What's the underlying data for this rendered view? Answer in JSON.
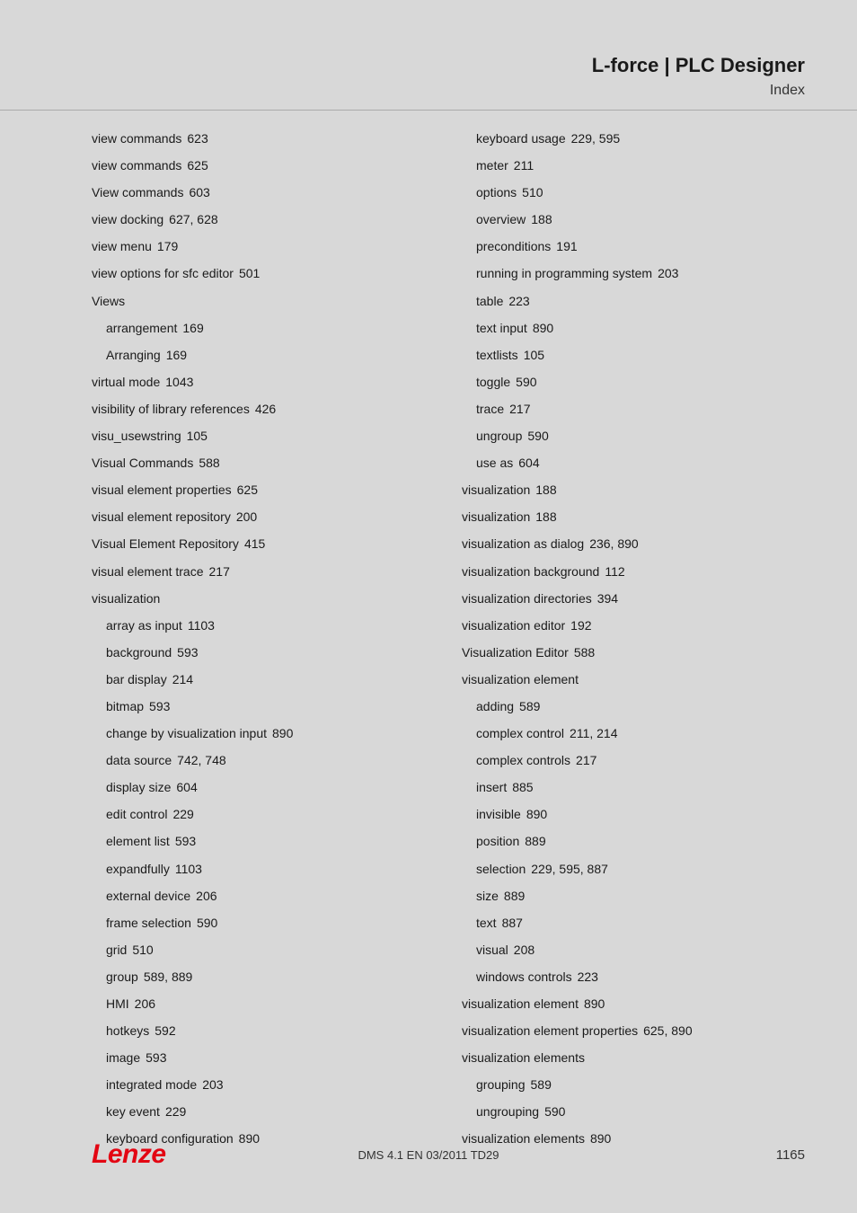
{
  "header": {
    "title": "L-force | PLC Designer",
    "subtitle": "Index"
  },
  "footer": {
    "logo": "Lenze",
    "doc_id": "DMS 4.1 EN 03/2011 TD29",
    "page_number": "1165"
  },
  "index": {
    "left": [
      {
        "level": 1,
        "term": "view commands",
        "pages": "623"
      },
      {
        "level": 1,
        "term": "view commands",
        "pages": "625"
      },
      {
        "level": 1,
        "term": "View commands",
        "pages": "603"
      },
      {
        "level": 1,
        "term": "view docking",
        "pages": "627, 628"
      },
      {
        "level": 1,
        "term": "view menu",
        "pages": "179"
      },
      {
        "level": 1,
        "term": "view options for sfc editor",
        "pages": "501"
      },
      {
        "level": 1,
        "term": "Views",
        "pages": ""
      },
      {
        "level": 2,
        "term": "arrangement",
        "pages": "169"
      },
      {
        "level": 2,
        "term": "Arranging",
        "pages": "169"
      },
      {
        "level": 1,
        "term": "virtual mode",
        "pages": "1043"
      },
      {
        "level": 1,
        "term": "visibility of library references",
        "pages": "426"
      },
      {
        "level": 1,
        "term": "visu_usewstring",
        "pages": "105"
      },
      {
        "level": 1,
        "term": "Visual Commands",
        "pages": "588"
      },
      {
        "level": 1,
        "term": "visual element properties",
        "pages": "625"
      },
      {
        "level": 1,
        "term": "visual element repository",
        "pages": "200"
      },
      {
        "level": 1,
        "term": "Visual Element Repository",
        "pages": "415"
      },
      {
        "level": 1,
        "term": "visual element trace",
        "pages": "217"
      },
      {
        "level": 1,
        "term": "visualization",
        "pages": ""
      },
      {
        "level": 2,
        "term": "array as input",
        "pages": "1103"
      },
      {
        "level": 2,
        "term": "background",
        "pages": "593"
      },
      {
        "level": 2,
        "term": "bar display",
        "pages": "214"
      },
      {
        "level": 2,
        "term": "bitmap",
        "pages": "593"
      },
      {
        "level": 2,
        "term": "change by visualization input",
        "pages": "890"
      },
      {
        "level": 2,
        "term": "data source",
        "pages": "742, 748"
      },
      {
        "level": 2,
        "term": "display size",
        "pages": "604"
      },
      {
        "level": 2,
        "term": "edit control",
        "pages": "229"
      },
      {
        "level": 2,
        "term": "element list",
        "pages": "593"
      },
      {
        "level": 2,
        "term": "expandfully",
        "pages": "1103"
      },
      {
        "level": 2,
        "term": "external device",
        "pages": "206"
      },
      {
        "level": 2,
        "term": "frame selection",
        "pages": "590"
      },
      {
        "level": 2,
        "term": "grid",
        "pages": "510"
      },
      {
        "level": 2,
        "term": "group",
        "pages": "589, 889"
      },
      {
        "level": 2,
        "term": "HMI",
        "pages": "206"
      },
      {
        "level": 2,
        "term": "hotkeys",
        "pages": "592"
      },
      {
        "level": 2,
        "term": "image",
        "pages": "593"
      },
      {
        "level": 2,
        "term": "integrated mode",
        "pages": "203"
      },
      {
        "level": 2,
        "term": "key event",
        "pages": "229"
      },
      {
        "level": 2,
        "term": "keyboard configuration",
        "pages": "890"
      }
    ],
    "right": [
      {
        "level": 2,
        "term": "keyboard usage",
        "pages": "229, 595"
      },
      {
        "level": 2,
        "term": "meter",
        "pages": "211"
      },
      {
        "level": 2,
        "term": "options",
        "pages": "510"
      },
      {
        "level": 2,
        "term": "overview",
        "pages": "188"
      },
      {
        "level": 2,
        "term": "preconditions",
        "pages": "191"
      },
      {
        "level": 2,
        "term": "running in programming system",
        "pages": "203"
      },
      {
        "level": 2,
        "term": "table",
        "pages": "223"
      },
      {
        "level": 2,
        "term": "text input",
        "pages": "890"
      },
      {
        "level": 2,
        "term": "textlists",
        "pages": "105"
      },
      {
        "level": 2,
        "term": "toggle",
        "pages": "590"
      },
      {
        "level": 2,
        "term": "trace",
        "pages": "217"
      },
      {
        "level": 2,
        "term": "ungroup",
        "pages": "590"
      },
      {
        "level": 2,
        "term": "use as",
        "pages": "604"
      },
      {
        "level": 1,
        "term": "visualization",
        "pages": "188"
      },
      {
        "level": 1,
        "term": "visualization",
        "pages": "188"
      },
      {
        "level": 1,
        "term": "visualization as dialog",
        "pages": "236, 890"
      },
      {
        "level": 1,
        "term": "visualization background",
        "pages": "112"
      },
      {
        "level": 1,
        "term": "visualization directories",
        "pages": "394"
      },
      {
        "level": 1,
        "term": "visualization editor",
        "pages": "192"
      },
      {
        "level": 1,
        "term": "Visualization Editor",
        "pages": "588"
      },
      {
        "level": 1,
        "term": "visualization element",
        "pages": ""
      },
      {
        "level": 2,
        "term": "adding",
        "pages": "589"
      },
      {
        "level": 2,
        "term": "complex control",
        "pages": "211, 214"
      },
      {
        "level": 2,
        "term": "complex controls",
        "pages": "217"
      },
      {
        "level": 2,
        "term": "insert",
        "pages": "885"
      },
      {
        "level": 2,
        "term": "invisible",
        "pages": "890"
      },
      {
        "level": 2,
        "term": "position",
        "pages": "889"
      },
      {
        "level": 2,
        "term": "selection",
        "pages": "229, 595, 887"
      },
      {
        "level": 2,
        "term": "size",
        "pages": "889"
      },
      {
        "level": 2,
        "term": "text",
        "pages": "887"
      },
      {
        "level": 2,
        "term": "visual",
        "pages": "208"
      },
      {
        "level": 2,
        "term": "windows controls",
        "pages": "223"
      },
      {
        "level": 1,
        "term": "visualization element",
        "pages": "890"
      },
      {
        "level": 1,
        "term": "visualization element properties",
        "pages": "625, 890"
      },
      {
        "level": 1,
        "term": "visualization elements",
        "pages": ""
      },
      {
        "level": 2,
        "term": "grouping",
        "pages": "589"
      },
      {
        "level": 2,
        "term": "ungrouping",
        "pages": "590"
      },
      {
        "level": 1,
        "term": "visualization elements",
        "pages": "890"
      }
    ]
  }
}
